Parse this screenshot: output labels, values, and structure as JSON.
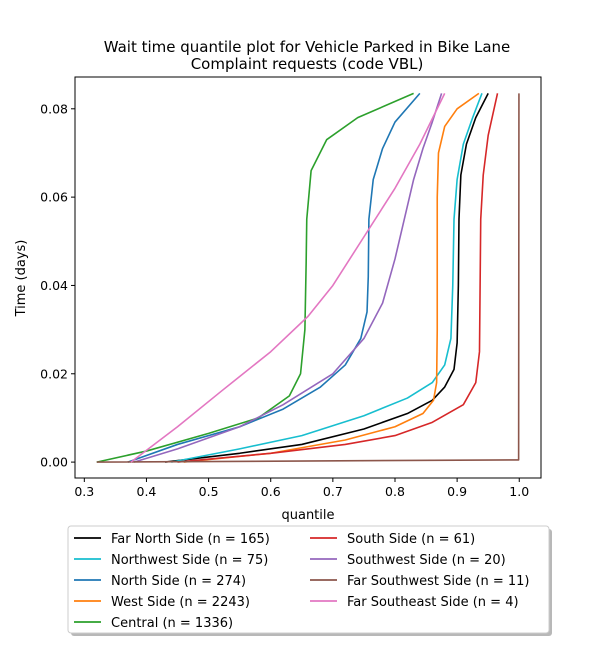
{
  "chart_data": {
    "type": "line",
    "title": [
      "Wait time quantile plot for Vehicle Parked in Bike Lane",
      "Complaint  requests (code VBL)"
    ],
    "xlabel": "quantile",
    "ylabel": "Time (days)",
    "xlim": [
      0.285,
      1.035
    ],
    "ylim": [
      -0.0036,
      0.0872
    ],
    "xticks": [
      0.3,
      0.4,
      0.5,
      0.6,
      0.7,
      0.8,
      0.9,
      1.0
    ],
    "xtick_labels": [
      "0.3",
      "0.4",
      "0.5",
      "0.6",
      "0.7",
      "0.8",
      "0.9",
      "1.0"
    ],
    "yticks": [
      0.0,
      0.02,
      0.04,
      0.06,
      0.08
    ],
    "ytick_labels": [
      "0.00",
      "0.02",
      "0.04",
      "0.06",
      "0.08"
    ],
    "grid": false,
    "legend_placement": "below plot, two columns",
    "series": [
      {
        "name": "Far North Side (n = 165)",
        "color": "#000000",
        "points": [
          [
            0.43,
            0.0
          ],
          [
            0.55,
            0.002
          ],
          [
            0.65,
            0.004
          ],
          [
            0.75,
            0.0075
          ],
          [
            0.82,
            0.011
          ],
          [
            0.86,
            0.014
          ],
          [
            0.88,
            0.017
          ],
          [
            0.895,
            0.021
          ],
          [
            0.9,
            0.027
          ],
          [
            0.902,
            0.04
          ],
          [
            0.903,
            0.055
          ],
          [
            0.906,
            0.065
          ],
          [
            0.915,
            0.072
          ],
          [
            0.93,
            0.078
          ],
          [
            0.95,
            0.0835
          ]
        ]
      },
      {
        "name": "Northwest Side (n = 75)",
        "color": "#17becf",
        "points": [
          [
            0.44,
            0.0
          ],
          [
            0.55,
            0.003
          ],
          [
            0.65,
            0.006
          ],
          [
            0.75,
            0.0105
          ],
          [
            0.82,
            0.0145
          ],
          [
            0.86,
            0.018
          ],
          [
            0.88,
            0.022
          ],
          [
            0.89,
            0.028
          ],
          [
            0.893,
            0.04
          ],
          [
            0.895,
            0.055
          ],
          [
            0.9,
            0.064
          ],
          [
            0.91,
            0.072
          ],
          [
            0.925,
            0.078
          ],
          [
            0.94,
            0.0835
          ]
        ]
      },
      {
        "name": "North Side (n = 274)",
        "color": "#1f77b4",
        "points": [
          [
            0.37,
            0.0
          ],
          [
            0.45,
            0.004
          ],
          [
            0.55,
            0.008
          ],
          [
            0.62,
            0.012
          ],
          [
            0.68,
            0.017
          ],
          [
            0.72,
            0.022
          ],
          [
            0.745,
            0.028
          ],
          [
            0.755,
            0.034
          ],
          [
            0.757,
            0.042
          ],
          [
            0.758,
            0.055
          ],
          [
            0.765,
            0.064
          ],
          [
            0.78,
            0.071
          ],
          [
            0.8,
            0.077
          ],
          [
            0.84,
            0.0835
          ]
        ]
      },
      {
        "name": "West Side (n = 2243)",
        "color": "#ff7f0e",
        "points": [
          [
            0.46,
            0.0
          ],
          [
            0.6,
            0.002
          ],
          [
            0.72,
            0.005
          ],
          [
            0.8,
            0.008
          ],
          [
            0.845,
            0.011
          ],
          [
            0.862,
            0.014
          ],
          [
            0.867,
            0.018
          ],
          [
            0.868,
            0.03
          ],
          [
            0.868,
            0.06
          ],
          [
            0.87,
            0.07
          ],
          [
            0.88,
            0.076
          ],
          [
            0.9,
            0.08
          ],
          [
            0.935,
            0.0835
          ]
        ]
      },
      {
        "name": "Central (n = 1336)",
        "color": "#2ca02c",
        "points": [
          [
            0.32,
            0.0
          ],
          [
            0.4,
            0.0025
          ],
          [
            0.5,
            0.0065
          ],
          [
            0.58,
            0.01
          ],
          [
            0.63,
            0.015
          ],
          [
            0.648,
            0.02
          ],
          [
            0.655,
            0.03
          ],
          [
            0.657,
            0.045
          ],
          [
            0.658,
            0.055
          ],
          [
            0.665,
            0.066
          ],
          [
            0.69,
            0.073
          ],
          [
            0.74,
            0.078
          ],
          [
            0.83,
            0.0835
          ]
        ]
      },
      {
        "name": "South Side (n = 61)",
        "color": "#d62728",
        "points": [
          [
            0.45,
            0.0
          ],
          [
            0.6,
            0.002
          ],
          [
            0.72,
            0.004
          ],
          [
            0.8,
            0.006
          ],
          [
            0.86,
            0.009
          ],
          [
            0.91,
            0.013
          ],
          [
            0.93,
            0.018
          ],
          [
            0.936,
            0.025
          ],
          [
            0.937,
            0.04
          ],
          [
            0.938,
            0.055
          ],
          [
            0.942,
            0.065
          ],
          [
            0.95,
            0.074
          ],
          [
            0.965,
            0.0835
          ]
        ]
      },
      {
        "name": "Southwest Side (n = 20)",
        "color": "#9467bd",
        "points": [
          [
            0.38,
            0.0
          ],
          [
            0.45,
            0.003
          ],
          [
            0.55,
            0.008
          ],
          [
            0.62,
            0.013
          ],
          [
            0.7,
            0.02
          ],
          [
            0.75,
            0.028
          ],
          [
            0.78,
            0.036
          ],
          [
            0.8,
            0.046
          ],
          [
            0.815,
            0.055
          ],
          [
            0.83,
            0.064
          ],
          [
            0.845,
            0.071
          ],
          [
            0.86,
            0.077
          ],
          [
            0.875,
            0.0835
          ]
        ]
      },
      {
        "name": "Far Southwest Side (n = 11)",
        "color": "#8c564b",
        "points": [
          [
            0.32,
            0.0
          ],
          [
            0.999,
            0.0005
          ],
          [
            0.9995,
            0.0835
          ]
        ]
      },
      {
        "name": "Far Southeast Side (n = 4)",
        "color": "#e377c2",
        "points": [
          [
            0.375,
            0.0
          ],
          [
            0.45,
            0.008
          ],
          [
            0.52,
            0.016
          ],
          [
            0.6,
            0.025
          ],
          [
            0.66,
            0.033
          ],
          [
            0.7,
            0.04
          ],
          [
            0.75,
            0.051
          ],
          [
            0.8,
            0.062
          ],
          [
            0.84,
            0.072
          ],
          [
            0.88,
            0.0835
          ]
        ]
      }
    ]
  }
}
